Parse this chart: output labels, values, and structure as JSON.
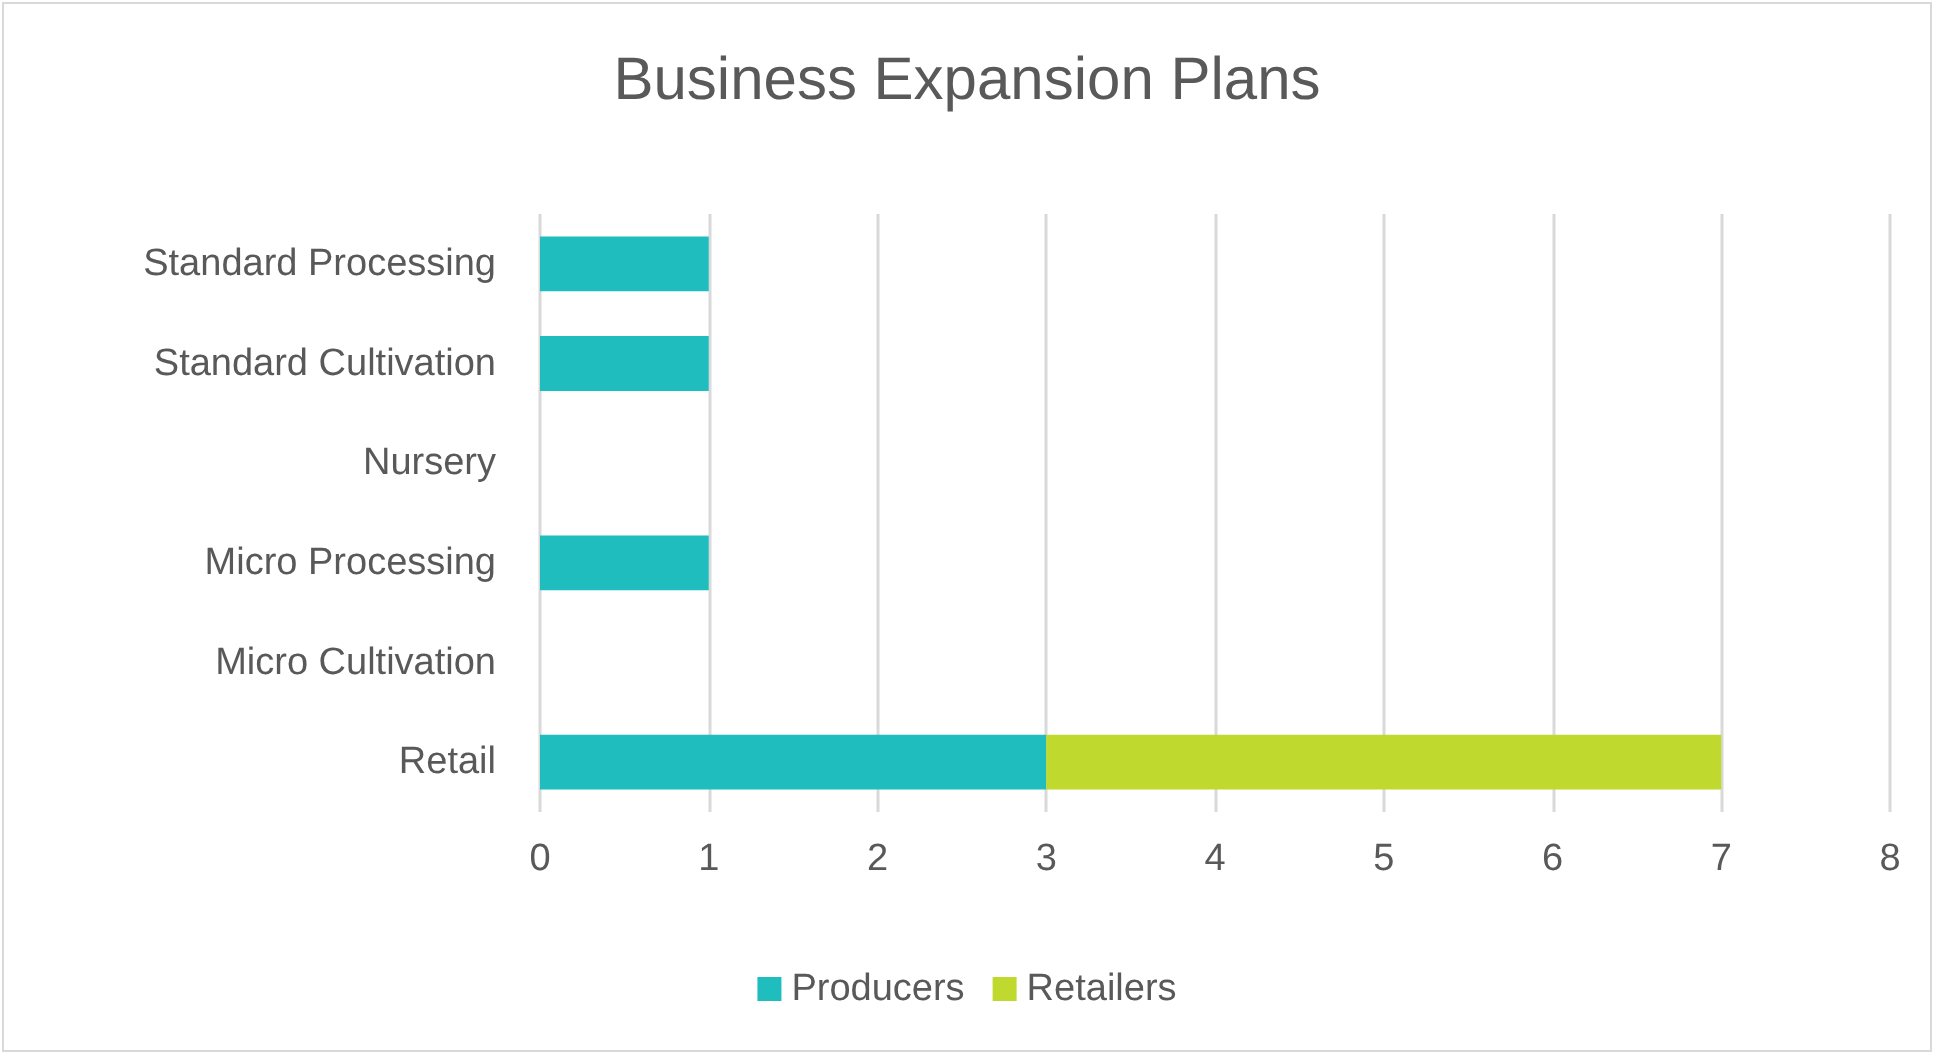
{
  "chart_data": {
    "type": "bar",
    "title": "Business Expansion Plans",
    "orientation": "horizontal",
    "stacked": true,
    "categories": [
      "Standard Processing",
      "Standard Cultivation",
      "Nursery",
      "Micro Processing",
      "Micro Cultivation",
      "Retail"
    ],
    "series": [
      {
        "name": "Producers",
        "color": "#20bdbe",
        "values": [
          1,
          1,
          0,
          1,
          0,
          3
        ]
      },
      {
        "name": "Retailers",
        "color": "#c0d92e",
        "values": [
          0,
          0,
          0,
          0,
          0,
          4
        ]
      }
    ],
    "xlim": [
      0,
      8
    ],
    "xticks": [
      0,
      1,
      2,
      3,
      4,
      5,
      6,
      7,
      8
    ],
    "grid": "x",
    "legend": "bottom"
  }
}
